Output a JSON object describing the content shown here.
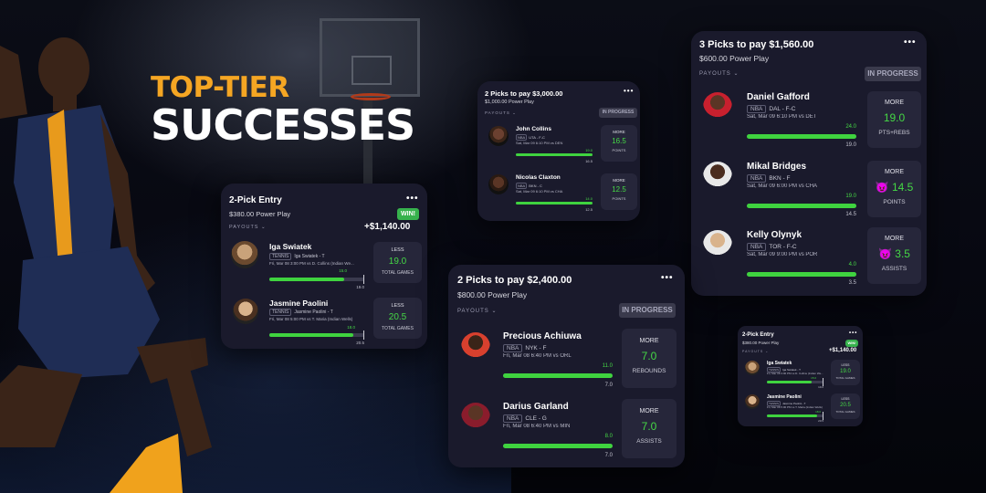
{
  "headline": {
    "line1": "TOP-TIER",
    "line2": "SUCCESSES"
  },
  "colors": {
    "accent_orange": "#f5a623",
    "progress_green": "#3fd33f",
    "value_green": "#45d845",
    "win_badge": "#37b24d",
    "card_bg": "#1a1a2c"
  },
  "cards": [
    {
      "title": "2-Pick Entry",
      "subtitle": "$380.00 Power Play",
      "payouts_label": "PAYOUTS",
      "badge": "WIN!",
      "amount": "+$1,140.00",
      "picks": [
        {
          "name": "Iga Swiatek",
          "league": "TENNIS",
          "team": "Iga Swiatek - T",
          "game": "Fri, Mar 08 3:00 PM  vs D. Collins (Indian We...",
          "current": "15.0",
          "line": "19.0",
          "progress": 0.79,
          "direction": "LESS",
          "value": "19.0",
          "stat": "TOTAL GAMES"
        },
        {
          "name": "Jasmine Paolini",
          "league": "TENNIS",
          "team": "Jasmine Paolini - T",
          "game": "Fri, Mar 08 5:00 PM  vs T. Maria (Indian Wells)",
          "current": "18.0",
          "line": "20.5",
          "progress": 0.88,
          "direction": "LESS",
          "value": "20.5",
          "stat": "TOTAL GAMES"
        }
      ]
    },
    {
      "title": "2 Picks to pay $3,000.00",
      "subtitle": "$1,000.00 Power Play",
      "payouts_label": "PAYOUTS",
      "badge": "IN PROGRESS",
      "picks": [
        {
          "name": "John Collins",
          "league": "NBA",
          "team": "UTA - F-C",
          "game": "Sat, Mar 09 6:10 PM  vs DEN",
          "current": "19.0",
          "line": "16.5",
          "progress": 1.0,
          "direction": "MORE",
          "value": "16.5",
          "stat": "POINTS"
        },
        {
          "name": "Nicolas Claxton",
          "league": "NBA",
          "team": "BKN - C",
          "game": "Sat, Mar 09 6:10 PM  vs CHA",
          "current": "14.0",
          "line": "12.5",
          "progress": 1.0,
          "direction": "MORE",
          "value": "12.5",
          "stat": "POINTS"
        }
      ]
    },
    {
      "title": "3 Picks to pay $1,560.00",
      "subtitle": "$600.00 Power Play",
      "payouts_label": "PAYOUTS",
      "badge": "IN PROGRESS",
      "picks": [
        {
          "name": "Daniel Gafford",
          "league": "NBA",
          "team": "DAL - F-C",
          "game": "Sat, Mar 09 6:10 PM  vs DET",
          "current": "24.0",
          "line": "19.0",
          "progress": 1.0,
          "direction": "MORE",
          "value": "19.0",
          "stat": "PTS+REBS",
          "demon": false
        },
        {
          "name": "Mikal Bridges",
          "league": "NBA",
          "team": "BKN - F",
          "game": "Sat, Mar 09 6:00 PM  vs CHA",
          "current": "19.0",
          "line": "14.5",
          "progress": 1.0,
          "direction": "MORE",
          "value": "14.5",
          "stat": "POINTS",
          "demon": true
        },
        {
          "name": "Kelly Olynyk",
          "league": "NBA",
          "team": "TOR - F-C",
          "game": "Sat, Mar 09 9:00 PM  vs POR",
          "current": "4.0",
          "line": "3.5",
          "progress": 1.0,
          "direction": "MORE",
          "value": "3.5",
          "stat": "ASSISTS",
          "demon": true
        }
      ]
    },
    {
      "title": "2 Picks to pay $2,400.00",
      "subtitle": "$800.00 Power Play",
      "payouts_label": "PAYOUTS",
      "badge": "IN PROGRESS",
      "picks": [
        {
          "name": "Precious Achiuwa",
          "league": "NBA",
          "team": "NYK - F",
          "game": "Fri, Mar 08 6:40 PM  vs ORL",
          "current": "11.0",
          "line": "7.0",
          "progress": 1.0,
          "direction": "MORE",
          "value": "7.0",
          "stat": "REBOUNDS"
        },
        {
          "name": "Darius Garland",
          "league": "NBA",
          "team": "CLE - G",
          "game": "Fri, Mar 08 6:40 PM  vs MIN",
          "current": "8.0",
          "line": "7.0",
          "progress": 1.0,
          "direction": "MORE",
          "value": "7.0",
          "stat": "ASSISTS"
        }
      ]
    },
    {
      "title": "2-Pick Entry",
      "subtitle": "$380.00 Power Play",
      "payouts_label": "PAYOUTS",
      "badge": "WIN!",
      "amount": "+$1,140.00",
      "picks": [
        {
          "name": "Iga Swiatek",
          "league": "TENNIS",
          "team": "Iga Swiatek - T",
          "game": "Fri, Mar 08 3:00 PM  vs D. Collins (Indian We...",
          "current": "15.0",
          "line": "19.0",
          "progress": 0.79,
          "direction": "LESS",
          "value": "19.0",
          "stat": "TOTAL GAMES"
        },
        {
          "name": "Jasmine Paolini",
          "league": "TENNIS",
          "team": "Jasmine Paolini - T",
          "game": "Fri, Mar 08 5:00 PM  vs T. Maria (Indian Wells)",
          "current": "18.0",
          "line": "20.5",
          "progress": 0.88,
          "direction": "LESS",
          "value": "20.5",
          "stat": "TOTAL GAMES"
        }
      ]
    }
  ]
}
